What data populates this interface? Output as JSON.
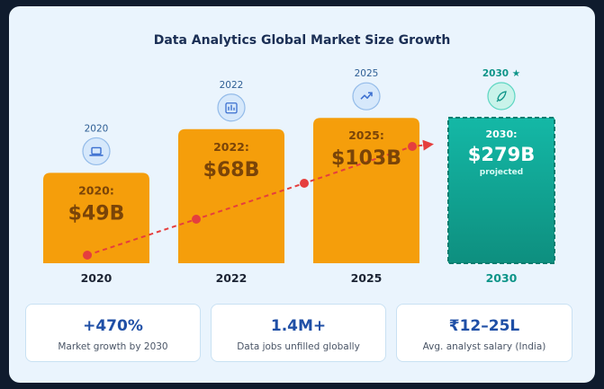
{
  "chart_data": {
    "type": "bar",
    "title": "Data Analytics Global Market Size Growth",
    "categories": [
      "2020",
      "2022",
      "2025",
      "2030"
    ],
    "top_labels": [
      "2020",
      "2022",
      "2025",
      "2030 ★"
    ],
    "values": [
      49,
      68,
      103,
      279
    ],
    "bar_labels": [
      "2020:",
      "2022:",
      "2025:",
      "2030:"
    ],
    "value_labels": [
      "$49B",
      "$68B",
      "$103B",
      "$279B"
    ],
    "projected_note": "projected",
    "icons": [
      "laptop-icon",
      "bar-chart-icon",
      "trending-up-icon",
      "rocket-icon"
    ],
    "colors": {
      "bar": "#f59e0b",
      "bar_text": "#7a4408",
      "projected_top": "#14b8a6",
      "projected_bottom": "#0e8f7f",
      "trend_line": "#e53e3e",
      "label_teal": "#0d9488",
      "icon_blue": "#3b6fd0"
    }
  },
  "stats": [
    {
      "value": "+470%",
      "label": "Market growth by 2030"
    },
    {
      "value": "1.4M+",
      "label": "Data jobs unfilled globally"
    },
    {
      "value": "₹12–25L",
      "label": "Avg. analyst salary (India)"
    }
  ]
}
